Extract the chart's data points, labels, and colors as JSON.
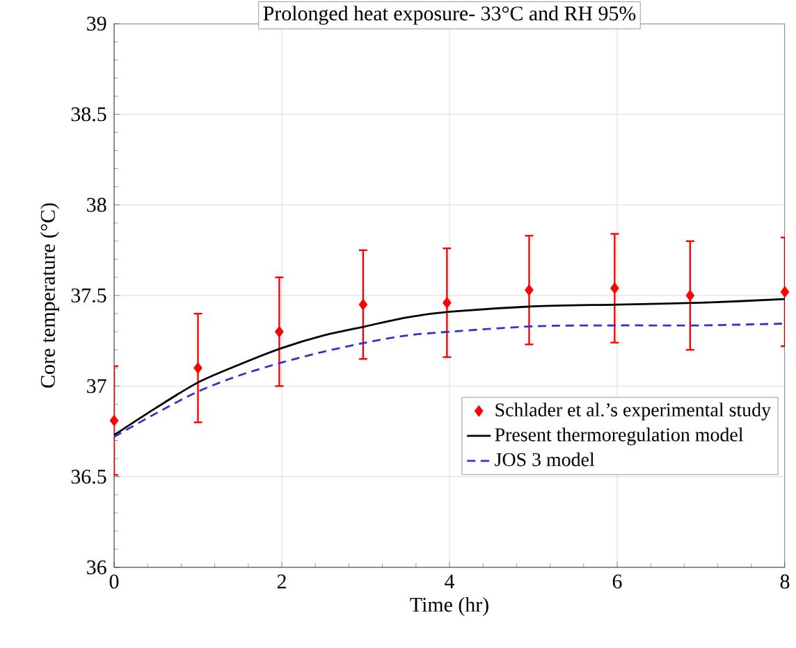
{
  "chart_data": {
    "type": "line",
    "title": "Prolonged heat exposure- 33°C and RH 95%",
    "xlabel": "Time (hr)",
    "ylabel": "Core temperature (°C)",
    "xlim": [
      0,
      8
    ],
    "xticks": [
      0,
      2,
      4,
      6,
      8
    ],
    "ylim": [
      36,
      39
    ],
    "yticks": [
      36,
      36.5,
      37,
      37.5,
      38,
      38.5,
      39
    ],
    "grid": true,
    "legend": "bottom right",
    "series": [
      {
        "name": "Schlader et al.’s experimental study",
        "type": "scatter",
        "marker": "diamond",
        "color": "#ff0000",
        "x": [
          0,
          1,
          1.97,
          2.97,
          3.97,
          4.95,
          5.97,
          6.87,
          8
        ],
        "values": [
          36.81,
          37.1,
          37.3,
          37.45,
          37.46,
          37.53,
          37.54,
          37.5,
          37.52
        ],
        "errors": [
          0.3,
          0.3,
          0.3,
          0.3,
          0.3,
          0.3,
          0.3,
          0.3,
          0.3
        ]
      },
      {
        "name": "Present thermoregulation model",
        "type": "line",
        "line_style": "solid",
        "color": "#000000",
        "x": [
          0,
          0.5,
          1,
          1.5,
          2,
          2.5,
          3,
          3.5,
          4,
          5,
          6,
          7,
          8
        ],
        "values": [
          36.73,
          36.88,
          37.02,
          37.12,
          37.21,
          37.28,
          37.33,
          37.38,
          37.41,
          37.44,
          37.45,
          37.46,
          37.48
        ]
      },
      {
        "name": "JOS 3 model",
        "type": "line",
        "line_style": "dashed",
        "color": "#3333cc",
        "x": [
          0,
          0.5,
          1,
          1.5,
          2,
          2.5,
          3,
          3.5,
          4,
          5,
          6,
          7,
          8
        ],
        "values": [
          36.72,
          36.85,
          36.97,
          37.06,
          37.13,
          37.19,
          37.24,
          37.28,
          37.3,
          37.33,
          37.335,
          37.335,
          37.345
        ]
      }
    ]
  }
}
